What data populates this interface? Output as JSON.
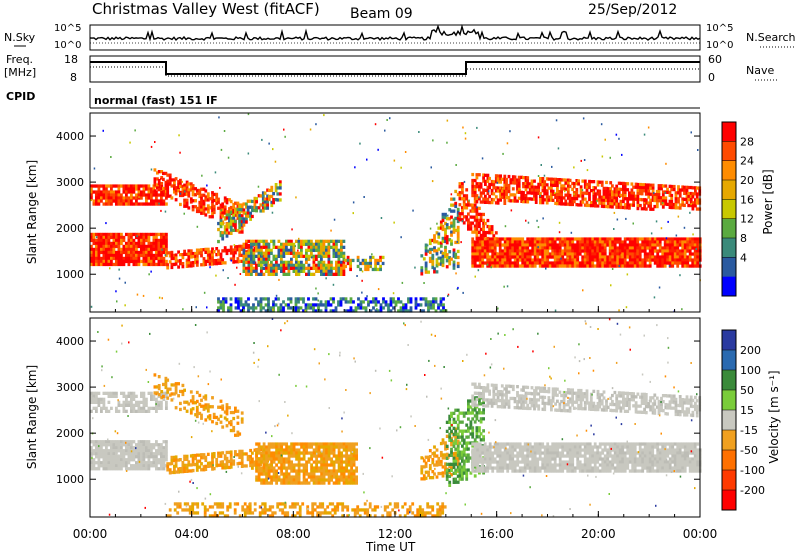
{
  "header": {
    "title": "Christmas Valley West (fitACF)",
    "beam": "Beam 09",
    "date": "25/Sep/2012"
  },
  "top_panels": {
    "nsky_label": "N.Sky",
    "nsearch_label": "N.Search",
    "n_ticks_left": [
      "10^5",
      "10^0"
    ],
    "n_ticks_right": [
      "10^5",
      "10^0"
    ],
    "freq_label_1": "Freq.",
    "freq_label_2": "[MHz]",
    "freq_ticks": [
      "18",
      "8"
    ],
    "nave_label": "Nave",
    "nave_ticks": [
      "60",
      "0"
    ],
    "cpid_label": "CPID",
    "cpid_value": "normal (fast) 151 IF"
  },
  "chart_data": [
    {
      "type": "heatmap",
      "name": "Power",
      "ylabel": "Slant Range [km]",
      "yticks": [
        "4000",
        "3000",
        "2000",
        "1000"
      ],
      "ylim": [
        180,
        4500
      ],
      "colorbar_label": "Power [dB]",
      "colorbar_ticks": [
        "28",
        "24",
        "20",
        "16",
        "12",
        "8",
        "4"
      ],
      "colorbar_colors": [
        "#ff0000",
        "#ff4a00",
        "#ff8c00",
        "#e6a800",
        "#c8c800",
        "#5aaa40",
        "#3a8a7a",
        "#2a5aa0",
        "#0000ff"
      ],
      "features": [
        {
          "x_hours": [
            0,
            3
          ],
          "range_km": [
            1200,
            1900
          ],
          "level": "high"
        },
        {
          "x_hours": [
            0,
            3
          ],
          "range_km": [
            2400,
            3000
          ],
          "level": "high"
        },
        {
          "x_hours": [
            7,
            10
          ],
          "range_km": [
            1000,
            1700
          ],
          "level": "mixed"
        },
        {
          "x_hours": [
            14.5,
            24
          ],
          "range_km": [
            1200,
            1800
          ],
          "level": "high"
        },
        {
          "x_hours": [
            15,
            24
          ],
          "range_km": [
            2400,
            3200
          ],
          "level": "high"
        }
      ]
    },
    {
      "type": "heatmap",
      "name": "Velocity",
      "ylabel": "Slant Range [km]",
      "yticks": [
        "4000",
        "3000",
        "2000",
        "1000"
      ],
      "ylim": [
        180,
        4500
      ],
      "colorbar_label": "Velocity [m s⁻¹]",
      "colorbar_ticks": [
        "200",
        "100",
        "50",
        "15",
        "-15",
        "-50",
        "-100",
        "-200"
      ],
      "colorbar_colors": [
        "#2a3aa0",
        "#2a6ab0",
        "#3a8a3a",
        "#7acc3a",
        "#c8c8c0",
        "#f0a020",
        "#ff7000",
        "#ff3a00",
        "#ff0000"
      ],
      "features": [
        {
          "x_hours": [
            0,
            3
          ],
          "range_km": [
            1200,
            1800
          ],
          "level": "ground"
        },
        {
          "x_hours": [
            7,
            10
          ],
          "range_km": [
            900,
            1800
          ],
          "level": "negative"
        },
        {
          "x_hours": [
            14,
            15
          ],
          "range_km": [
            900,
            2400
          ],
          "level": "positive"
        },
        {
          "x_hours": [
            15,
            24
          ],
          "range_km": [
            1200,
            1800
          ],
          "level": "ground"
        }
      ]
    }
  ],
  "x_axis": {
    "ticks": [
      "00:00",
      "04:00",
      "08:00",
      "12:00",
      "16:00",
      "20:00",
      "00:00"
    ],
    "label": "Time UT"
  },
  "colors": {
    "background": "#ffffff",
    "axis": "#000000"
  }
}
